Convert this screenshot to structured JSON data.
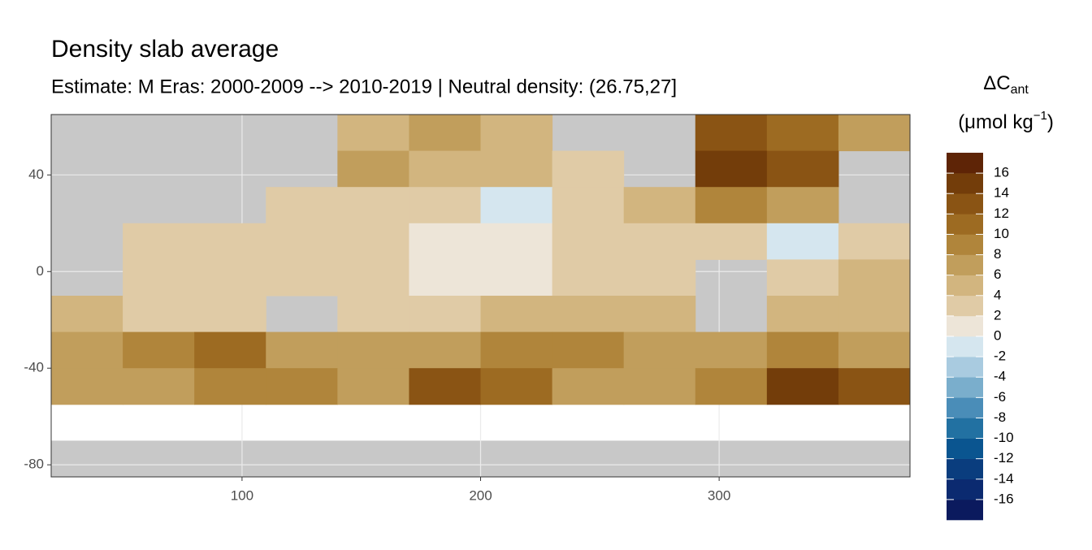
{
  "chart_data": {
    "type": "raster",
    "title": "Density slab average",
    "subtitle": "Estimate: M Eras: 2000-2009 --> 2010-2019 | Neutral density: (26.75,27]",
    "x": [
      35,
      65,
      95,
      125,
      155,
      185,
      215,
      245,
      275,
      305,
      335,
      365
    ],
    "y": [
      57.5,
      42.5,
      27.5,
      12.5,
      -2.5,
      -17.5,
      -32.5,
      -47.5,
      -77.5
    ],
    "values": [
      [
        null,
        null,
        null,
        null,
        4,
        6,
        5,
        null,
        null,
        12,
        10,
        6
      ],
      [
        null,
        null,
        null,
        null,
        6,
        4,
        4,
        3,
        null,
        14,
        12,
        null
      ],
      [
        null,
        null,
        null,
        2,
        2,
        2,
        -2,
        2,
        4,
        8,
        6,
        null
      ],
      [
        null,
        3,
        2,
        2,
        2,
        1,
        1,
        2,
        2,
        3,
        -2,
        3
      ],
      [
        null,
        3,
        3,
        2,
        2,
        1,
        1,
        2,
        3,
        null,
        3,
        4
      ],
      [
        4,
        3,
        3,
        null,
        3,
        2,
        4,
        4,
        5,
        null,
        4,
        5
      ],
      [
        6,
        8,
        10,
        6,
        6,
        7,
        9,
        9,
        7,
        6,
        8,
        6
      ],
      [
        6,
        7,
        9,
        8,
        7,
        12,
        11,
        7,
        6,
        8,
        14,
        12
      ],
      [
        null,
        null,
        null,
        null,
        null,
        null,
        null,
        null,
        null,
        null,
        null,
        null
      ]
    ],
    "xlim": [
      20,
      380
    ],
    "ylim": [
      -85,
      65
    ],
    "xticks": [
      100,
      200,
      300
    ],
    "yticks": [
      40,
      0,
      -40,
      -80
    ],
    "grid": true,
    "colorbar": {
      "title": "ΔC",
      "title_sub": "ant",
      "unit": "(μmol kg",
      "unit_sup": "−1",
      "unit_end": ")",
      "lim": [
        -18,
        18
      ],
      "ticks": [
        16,
        14,
        12,
        10,
        8,
        6,
        4,
        2,
        0,
        -2,
        -4,
        -6,
        -8,
        -10,
        -12,
        -14,
        -16
      ],
      "colors": [
        "#0b1a5e",
        "#0b2a70",
        "#0a3d7e",
        "#0a5590",
        "#2271a2",
        "#4a8db8",
        "#7aaecc",
        "#a9cbe0",
        "#d5e6ef",
        "#ede5d8",
        "#e0cba6",
        "#d2b57f",
        "#c19e5c",
        "#b0853b",
        "#9d6b22",
        "#8a5414",
        "#733d0a",
        "#5e2406"
      ]
    }
  }
}
